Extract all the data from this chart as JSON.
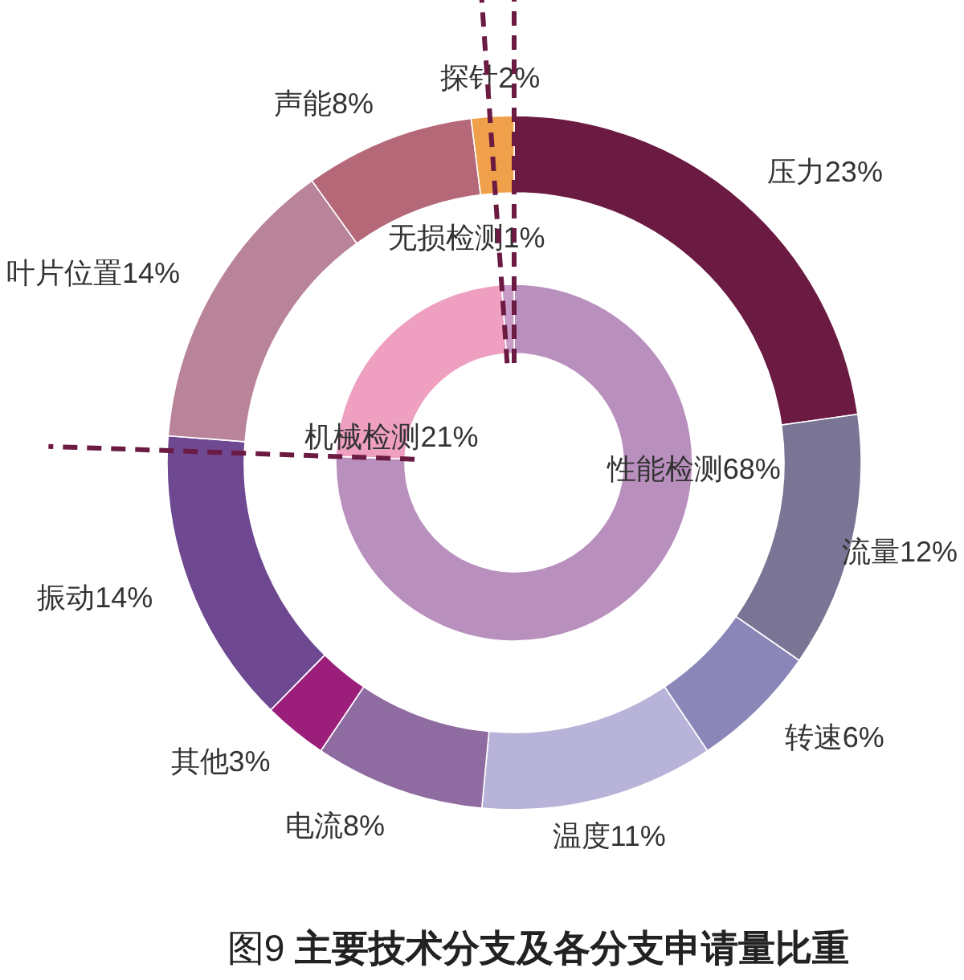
{
  "chart_data": [
    {
      "type": "donut",
      "title": "图9 **主要技术分支及各分支申请量比重**",
      "categories": [
        "压力",
        "流量",
        "转速",
        "温度",
        "电流",
        "其他",
        "振动",
        "叶片位置",
        "声能",
        "探针"
      ],
      "values": [
        23,
        12,
        6,
        11,
        8,
        3,
        14,
        14,
        8,
        2
      ],
      "value_labels": [
        "23%",
        "12%",
        "6%",
        "11%",
        "8%",
        "3%",
        "14%",
        "14%",
        "8%",
        "2%"
      ],
      "colors": [
        "#6b1a42",
        "#7a7594",
        "#8b86b8",
        "#b8b3d8",
        "#8e6ba0",
        "#9b1f7a",
        "#6e4891",
        "#b9849a",
        "#b56877",
        "#f0a04a"
      ]
    },
    {
      "type": "donut",
      "categories": [
        "性能检测",
        "机械检测",
        "无损检测"
      ],
      "values": [
        68,
        21,
        1
      ],
      "value_labels": [
        "68%",
        "21%",
        "1%"
      ],
      "colors": [
        "#b98fbd",
        "#ef9fc0",
        "#c89ac8"
      ]
    }
  ]
}
